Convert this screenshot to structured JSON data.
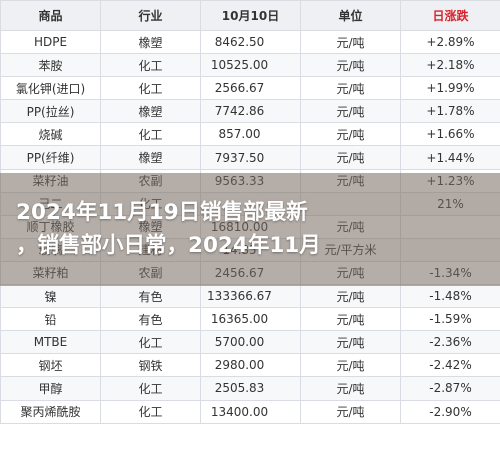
{
  "table": {
    "headers": [
      "商品",
      "行业",
      "10月10日",
      "单位",
      "日涨跌"
    ],
    "rows": [
      {
        "name": "HDPE",
        "industry": "橡塑",
        "value": "8462.50",
        "unit": "元/吨",
        "change": "+2.89%",
        "dir": "up"
      },
      {
        "name": "苯胺",
        "industry": "化工",
        "value": "10525.00",
        "unit": "元/吨",
        "change": "+2.18%",
        "dir": "up"
      },
      {
        "name": "氯化钾(进口)",
        "industry": "化工",
        "value": "2566.67",
        "unit": "元/吨",
        "change": "+1.99%",
        "dir": "up"
      },
      {
        "name": "PP(拉丝)",
        "industry": "橡塑",
        "value": "7742.86",
        "unit": "元/吨",
        "change": "+1.78%",
        "dir": "up"
      },
      {
        "name": "烧碱",
        "industry": "化工",
        "value": "857.00",
        "unit": "元/吨",
        "change": "+1.66%",
        "dir": "up"
      },
      {
        "name": "PP(纤维)",
        "industry": "橡塑",
        "value": "7937.50",
        "unit": "元/吨",
        "change": "+1.44%",
        "dir": "up"
      },
      {
        "name": "菜籽油",
        "industry": "农副",
        "value": "9563.33",
        "unit": "元/吨",
        "change": "+1.23%",
        "dir": "up"
      },
      {
        "name": "己二",
        "industry": "化工",
        "value": "",
        "unit": "",
        "change": "21%",
        "dir": "up"
      },
      {
        "name": "顺丁橡胶",
        "industry": "橡塑",
        "value": "16810.00",
        "unit": "元/吨",
        "change": "",
        "dir": "up"
      },
      {
        "name": "玻璃",
        "industry": "建材",
        "value": "14.85",
        "unit": "元/平方米",
        "change": "",
        "dir": "down"
      },
      {
        "name": "菜籽粕",
        "industry": "农副",
        "value": "2456.67",
        "unit": "元/吨",
        "change": "-1.34%",
        "dir": "down"
      },
      {
        "name": "镍",
        "industry": "有色",
        "value": "133366.67",
        "unit": "元/吨",
        "change": "-1.48%",
        "dir": "down"
      },
      {
        "name": "铅",
        "industry": "有色",
        "value": "16365.00",
        "unit": "元/吨",
        "change": "-1.59%",
        "dir": "down"
      },
      {
        "name": "MTBE",
        "industry": "化工",
        "value": "5700.00",
        "unit": "元/吨",
        "change": "-2.36%",
        "dir": "down"
      },
      {
        "name": "钢坯",
        "industry": "钢铁",
        "value": "2980.00",
        "unit": "元/吨",
        "change": "-2.42%",
        "dir": "down"
      },
      {
        "name": "甲醇",
        "industry": "化工",
        "value": "2505.83",
        "unit": "元/吨",
        "change": "-2.87%",
        "dir": "down"
      },
      {
        "name": "聚丙烯酰胺",
        "industry": "化工",
        "value": "13400.00",
        "unit": "元/吨",
        "change": "-2.90%",
        "dir": "down"
      }
    ]
  },
  "overlay": {
    "line1": "2024年11月19日销售部最新",
    "line2": "，销售部小日常，2024年11月"
  },
  "colors": {
    "up": "#e0282e",
    "down": "#1c9a4a",
    "header_bg": "#eef0f4",
    "border": "#d9dde3"
  }
}
